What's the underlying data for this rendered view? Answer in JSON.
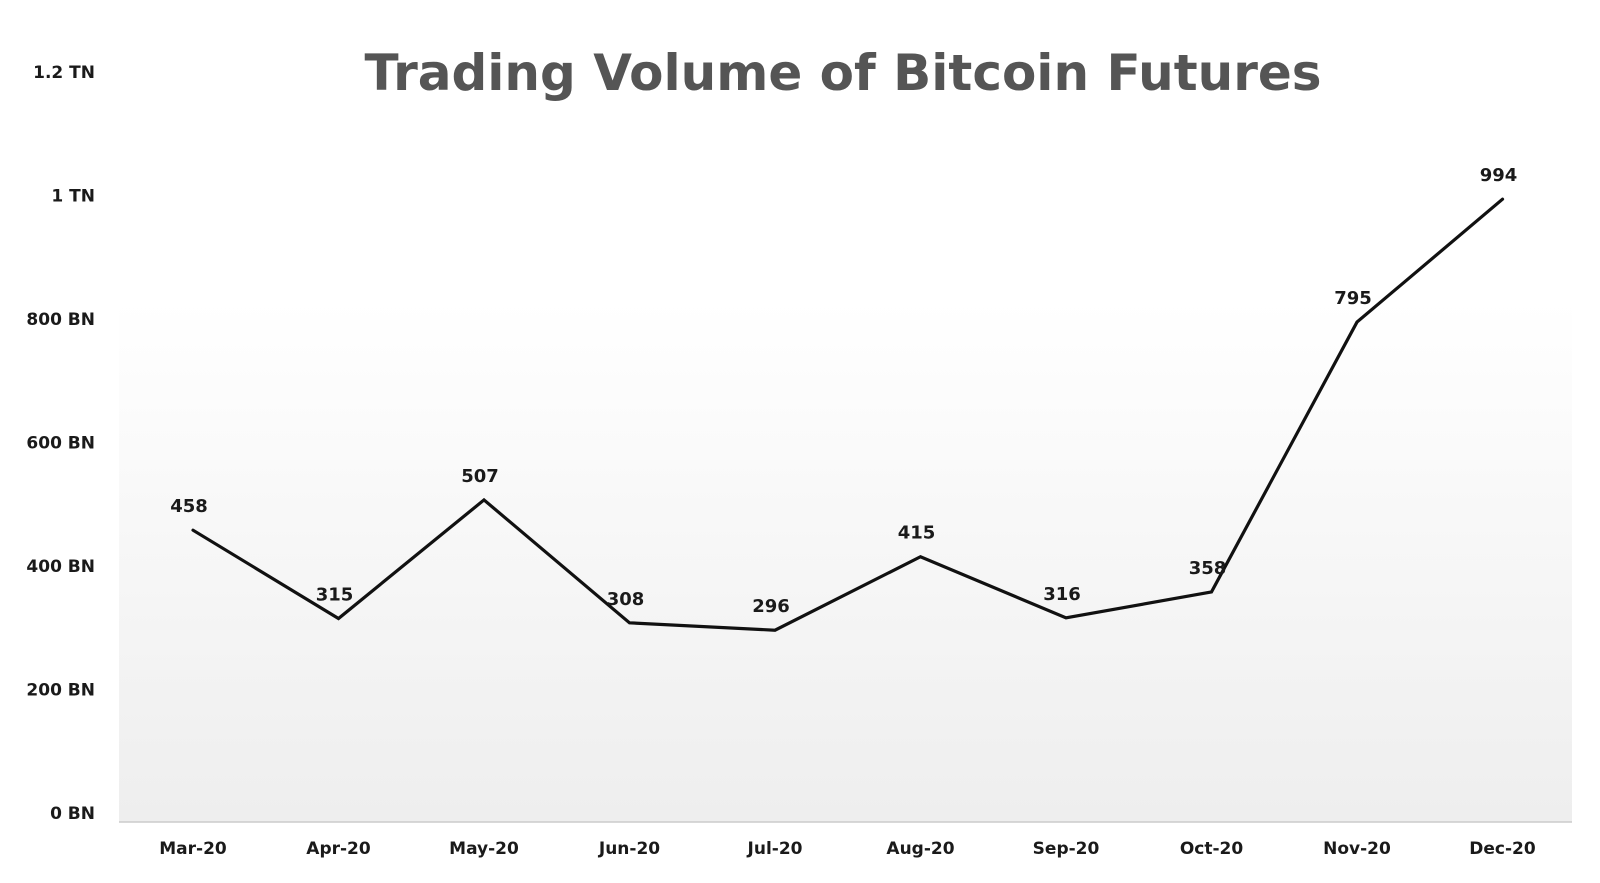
{
  "chart_data": {
    "type": "line",
    "title": "Trading Volume of Bitcoin Futures",
    "xlabel": "",
    "ylabel": "",
    "categories": [
      "Mar-20",
      "Apr-20",
      "May-20",
      "Jun-20",
      "Jul-20",
      "Aug-20",
      "Sep-20",
      "Oct-20",
      "Nov-20",
      "Dec-20"
    ],
    "series": [
      {
        "values": [
          458,
          315,
          507,
          308,
          296,
          415,
          316,
          358,
          795,
          994
        ],
        "data_labels": [
          "458",
          "315",
          "507",
          "308",
          "296",
          "415",
          "316",
          "358",
          "795",
          "994"
        ]
      }
    ],
    "unit": "BN",
    "ylim": [
      0,
      1200
    ],
    "yticks": [
      0,
      200,
      400,
      600,
      800,
      1000,
      1200
    ],
    "ytick_labels": [
      "0 BN",
      "200 BN",
      "400 BN",
      "600 BN",
      "800 BN",
      "1 TN",
      "1.2 TN"
    ],
    "grid": false,
    "legend": "none",
    "colors": {
      "line": "#111111",
      "title": "#555555",
      "text": "#1a1a1a",
      "plot_bg_top": "#ffffff",
      "plot_bg_bottom": "#eeeeee",
      "axis": "#cccccc"
    }
  }
}
